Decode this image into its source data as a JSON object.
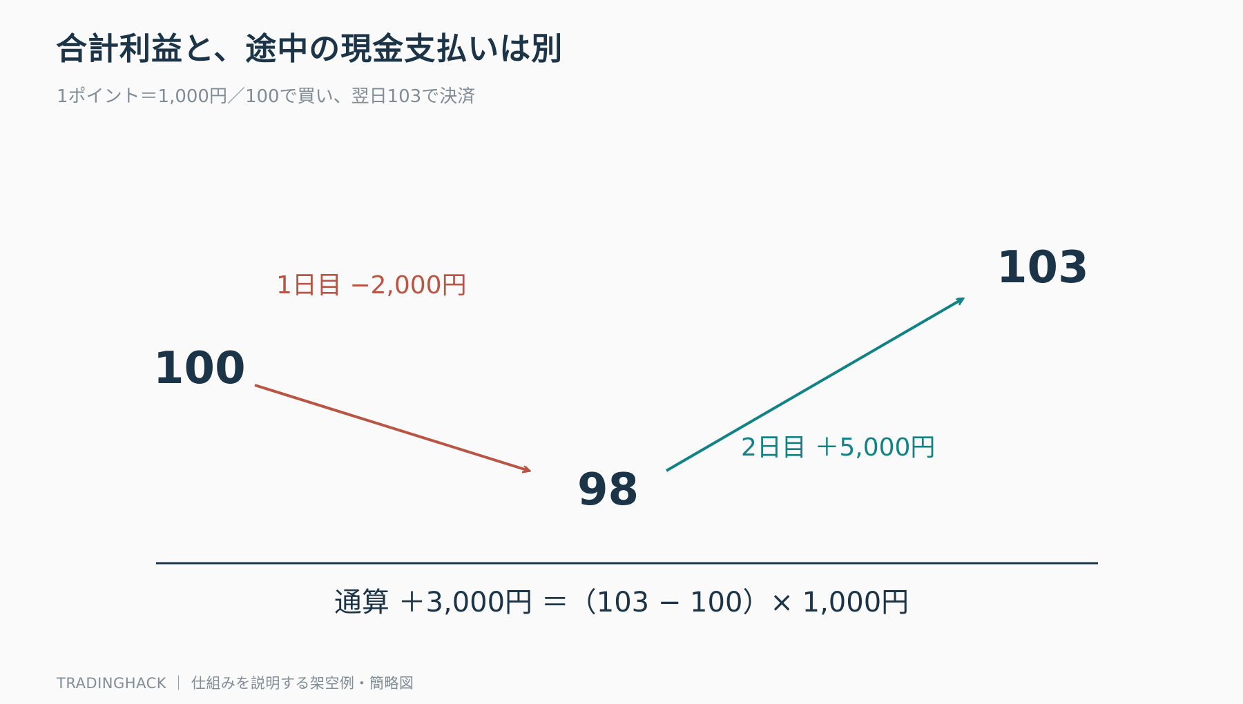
{
  "header": {
    "title": "合計利益と、途中の現金支払いは別",
    "subtitle": "1ポイント＝1,000円／100で買い、翌日103で決済"
  },
  "diagram": {
    "start_value": "100",
    "mid_value": "98",
    "end_value": "103",
    "day1_label": "1日目 −2,000円",
    "day2_label": "2日目 ＋5,000円",
    "formula": "通算 ＋3,000円 ＝（103 − 100）× 1,000円"
  },
  "colors": {
    "down": "#b95545",
    "up": "#128284",
    "ink": "#1c3448",
    "muted": "#808c96"
  },
  "footer": {
    "text": "TRADINGHACK ｜ 仕組みを説明する架空例・簡略図"
  }
}
